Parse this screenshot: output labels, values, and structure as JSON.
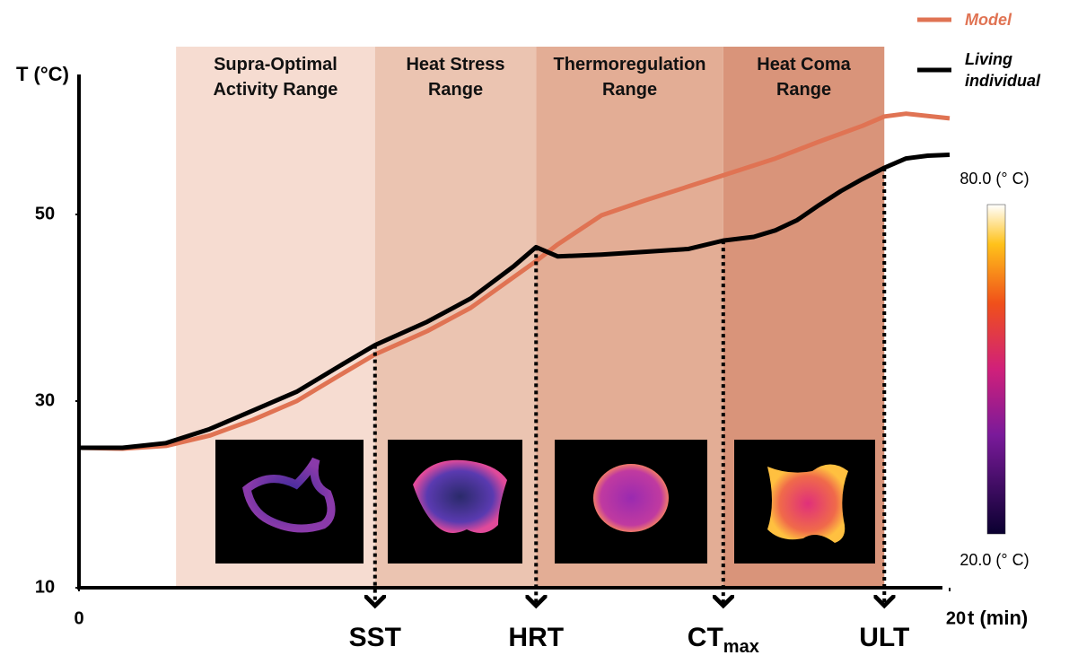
{
  "chart_data": {
    "type": "line",
    "y_label": "T (°C)",
    "x_label": "t (min)",
    "xlim": [
      0,
      20
    ],
    "xticks": [
      0,
      20
    ],
    "ylim": [
      10,
      65
    ],
    "yticks": [
      10,
      30,
      50
    ],
    "ranges": [
      {
        "label": "Supra-Optimal Activity Range",
        "start": 2.23,
        "end": 6.8,
        "color": "#f6dcd1"
      },
      {
        "label": "Heat Stress Range",
        "start": 6.8,
        "end": 10.5,
        "color": "#ebc4b1"
      },
      {
        "label": "Thermoregulation Range",
        "start": 10.5,
        "end": 14.8,
        "color": "#e3ad95"
      },
      {
        "label": "Heat Coma Range",
        "start": 14.8,
        "end": 18.5,
        "color": "#d9947a"
      }
    ],
    "thresholds": [
      {
        "label": "SST",
        "x": 6.8
      },
      {
        "label": "HRT",
        "x": 10.5
      },
      {
        "label": "CT",
        "subscript": "max",
        "x": 14.8
      },
      {
        "label": "ULT",
        "x": 18.5
      }
    ],
    "series": [
      {
        "name": "Model",
        "color": "#e07353",
        "x": [
          0,
          1,
          2,
          3,
          4,
          5,
          6,
          6.8,
          8,
          9,
          10.5,
          11,
          12,
          13,
          14,
          14.8,
          16,
          17,
          18,
          18.5,
          19,
          20
        ],
        "values": [
          25,
          24.9,
          25.2,
          26.3,
          28,
          30,
          32.8,
          35,
          37.5,
          40,
          45,
          46.8,
          49.9,
          51.5,
          53,
          54.2,
          56,
          57.8,
          59.5,
          60.5,
          60.8,
          60.3
        ]
      },
      {
        "name": "Living individual",
        "color": "#000000",
        "x": [
          0,
          1,
          2,
          3,
          4,
          5,
          6,
          6.8,
          8,
          9,
          10,
          10.5,
          11,
          12,
          13,
          14,
          14.8,
          15.5,
          16,
          16.5,
          17,
          17.5,
          18,
          18.5,
          19,
          19.5,
          20
        ],
        "values": [
          25,
          25,
          25.5,
          27,
          29,
          31,
          33.8,
          36,
          38.5,
          41,
          44.5,
          46.5,
          45.5,
          45.7,
          46,
          46.3,
          47.2,
          47.6,
          48.3,
          49.4,
          51,
          52.5,
          53.8,
          55,
          56,
          56.3,
          56.4
        ]
      }
    ],
    "colorbar": {
      "max_label": "80.0 (° C)",
      "min_label": "20.0 (° C)"
    }
  }
}
